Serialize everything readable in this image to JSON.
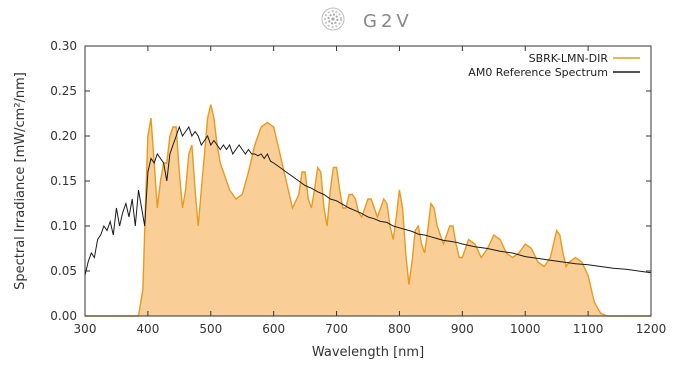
{
  "header": {
    "logo_text": "G2V"
  },
  "chart_data": {
    "type": "line",
    "xlabel": "Wavelength [nm]",
    "ylabel": "Spectral Irradiance [mW/cm²/nm]",
    "xlim": [
      300,
      1200
    ],
    "ylim": [
      0.0,
      0.3
    ],
    "xticks": [
      "300",
      "400",
      "500",
      "600",
      "700",
      "800",
      "900",
      "1000",
      "1100",
      "1200"
    ],
    "yticks": [
      "0.00",
      "0.05",
      "0.10",
      "0.15",
      "0.20",
      "0.25",
      "0.30"
    ],
    "grid": false,
    "legend_position": "top-right",
    "colors": {
      "sbrk": "#e89a1e",
      "sbrk_fill": "#f9cf97",
      "am0": "#1a1a1a"
    },
    "series": [
      {
        "name": "SBRK-LMN-DIR",
        "style": "filled",
        "x": [
          300,
          385,
          392,
          396,
          400,
          405,
          410,
          415,
          420,
          425,
          430,
          435,
          440,
          445,
          450,
          455,
          460,
          465,
          470,
          475,
          480,
          485,
          490,
          495,
          500,
          505,
          510,
          515,
          520,
          530,
          540,
          550,
          560,
          570,
          580,
          590,
          600,
          610,
          620,
          630,
          640,
          645,
          650,
          655,
          660,
          665,
          670,
          675,
          680,
          685,
          690,
          695,
          700,
          705,
          710,
          715,
          720,
          725,
          730,
          735,
          740,
          745,
          750,
          755,
          760,
          765,
          770,
          775,
          780,
          785,
          790,
          795,
          800,
          805,
          810,
          815,
          820,
          825,
          830,
          835,
          840,
          845,
          850,
          855,
          860,
          865,
          870,
          875,
          880,
          885,
          890,
          895,
          900,
          910,
          920,
          930,
          940,
          950,
          960,
          970,
          980,
          990,
          1000,
          1010,
          1020,
          1030,
          1040,
          1045,
          1050,
          1055,
          1060,
          1065,
          1070,
          1080,
          1090,
          1100,
          1110,
          1120,
          1130,
          1140,
          1150,
          1200
        ],
        "y": [
          0.0,
          0.0,
          0.03,
          0.12,
          0.2,
          0.22,
          0.17,
          0.12,
          0.15,
          0.17,
          0.17,
          0.2,
          0.21,
          0.21,
          0.16,
          0.12,
          0.14,
          0.18,
          0.19,
          0.14,
          0.1,
          0.14,
          0.18,
          0.22,
          0.235,
          0.22,
          0.19,
          0.17,
          0.16,
          0.14,
          0.13,
          0.135,
          0.16,
          0.19,
          0.21,
          0.215,
          0.21,
          0.18,
          0.15,
          0.12,
          0.135,
          0.16,
          0.16,
          0.13,
          0.12,
          0.14,
          0.165,
          0.16,
          0.12,
          0.1,
          0.14,
          0.165,
          0.165,
          0.14,
          0.12,
          0.12,
          0.135,
          0.135,
          0.13,
          0.115,
          0.11,
          0.12,
          0.13,
          0.13,
          0.12,
          0.11,
          0.12,
          0.13,
          0.125,
          0.1,
          0.085,
          0.11,
          0.14,
          0.12,
          0.07,
          0.035,
          0.06,
          0.095,
          0.1,
          0.08,
          0.07,
          0.095,
          0.125,
          0.12,
          0.1,
          0.09,
          0.08,
          0.09,
          0.1,
          0.1,
          0.08,
          0.065,
          0.065,
          0.085,
          0.08,
          0.065,
          0.075,
          0.09,
          0.085,
          0.07,
          0.065,
          0.07,
          0.08,
          0.075,
          0.06,
          0.055,
          0.065,
          0.08,
          0.095,
          0.09,
          0.07,
          0.055,
          0.06,
          0.065,
          0.06,
          0.045,
          0.015,
          0.003,
          0.0,
          0.0,
          0.0,
          0.0
        ]
      },
      {
        "name": "AM0 Reference Spectrum",
        "style": "line",
        "x": [
          300,
          305,
          310,
          315,
          320,
          325,
          330,
          335,
          340,
          345,
          350,
          355,
          360,
          365,
          370,
          375,
          380,
          385,
          390,
          395,
          400,
          405,
          410,
          415,
          420,
          425,
          430,
          435,
          440,
          445,
          450,
          455,
          460,
          465,
          470,
          475,
          480,
          485,
          490,
          495,
          500,
          505,
          510,
          515,
          520,
          525,
          530,
          535,
          540,
          545,
          550,
          555,
          560,
          565,
          570,
          575,
          580,
          585,
          590,
          595,
          600,
          610,
          620,
          630,
          640,
          650,
          660,
          670,
          680,
          690,
          700,
          710,
          720,
          730,
          740,
          750,
          760,
          770,
          780,
          790,
          800,
          810,
          820,
          830,
          840,
          850,
          860,
          870,
          880,
          890,
          900,
          920,
          940,
          960,
          980,
          1000,
          1020,
          1040,
          1060,
          1080,
          1100,
          1120,
          1140,
          1160,
          1180,
          1200
        ],
        "y": [
          0.045,
          0.06,
          0.07,
          0.065,
          0.085,
          0.09,
          0.1,
          0.095,
          0.105,
          0.09,
          0.12,
          0.1,
          0.115,
          0.125,
          0.11,
          0.13,
          0.1,
          0.14,
          0.12,
          0.1,
          0.16,
          0.175,
          0.17,
          0.18,
          0.175,
          0.17,
          0.15,
          0.18,
          0.19,
          0.2,
          0.21,
          0.2,
          0.205,
          0.21,
          0.2,
          0.205,
          0.2,
          0.19,
          0.195,
          0.2,
          0.19,
          0.195,
          0.19,
          0.185,
          0.19,
          0.185,
          0.19,
          0.18,
          0.185,
          0.19,
          0.185,
          0.18,
          0.185,
          0.18,
          0.18,
          0.178,
          0.18,
          0.175,
          0.18,
          0.172,
          0.17,
          0.165,
          0.16,
          0.155,
          0.15,
          0.145,
          0.142,
          0.138,
          0.135,
          0.13,
          0.128,
          0.124,
          0.12,
          0.117,
          0.114,
          0.11,
          0.108,
          0.105,
          0.104,
          0.1,
          0.098,
          0.096,
          0.094,
          0.091,
          0.09,
          0.088,
          0.086,
          0.084,
          0.083,
          0.082,
          0.08,
          0.077,
          0.075,
          0.072,
          0.07,
          0.066,
          0.064,
          0.062,
          0.06,
          0.058,
          0.057,
          0.055,
          0.053,
          0.052,
          0.05,
          0.048
        ]
      }
    ]
  }
}
